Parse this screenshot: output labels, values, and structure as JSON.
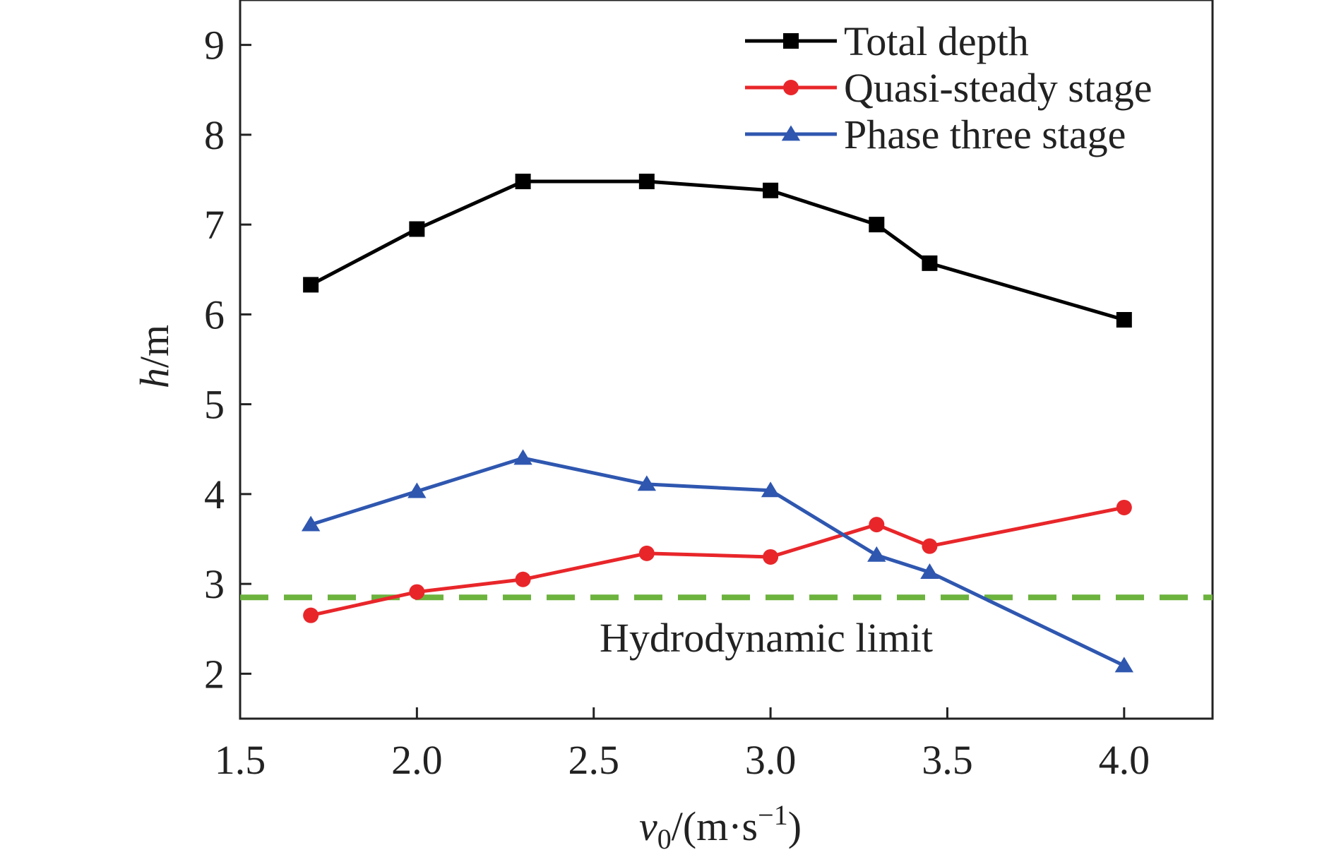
{
  "chart_data": {
    "type": "line",
    "xlabel": {
      "main": "v",
      "sub": "0",
      "unit_prefix": "/(m·s",
      "sup": "−1",
      "unit_suffix": ")"
    },
    "ylabel": {
      "italic": "h",
      "unit": "/m"
    },
    "xlim": [
      1.5,
      4.25
    ],
    "ylim": [
      1.5,
      9.5
    ],
    "x_ticks": [
      1.5,
      2.0,
      2.5,
      3.0,
      3.5,
      4.0
    ],
    "x_tick_labels": [
      "1.5",
      "2.0",
      "2.5",
      "3.0",
      "3.5",
      "4.0"
    ],
    "y_ticks": [
      2,
      3,
      4,
      5,
      6,
      7,
      8,
      9
    ],
    "y_tick_labels": [
      "2",
      "3",
      "4",
      "5",
      "6",
      "7",
      "8",
      "9"
    ],
    "grid": false,
    "legend_position": "top-right",
    "series": [
      {
        "name": "Total depth",
        "color": "#000000",
        "marker": "square",
        "x": [
          1.7,
          2.0,
          2.3,
          2.65,
          3.0,
          3.3,
          3.45,
          4.0
        ],
        "y": [
          6.33,
          6.95,
          7.48,
          7.48,
          7.38,
          7.0,
          6.57,
          5.94
        ]
      },
      {
        "name": "Quasi-steady stage",
        "color": "#e8262a",
        "marker": "circle",
        "x": [
          1.7,
          2.0,
          2.3,
          2.65,
          3.0,
          3.3,
          3.45,
          4.0
        ],
        "y": [
          2.65,
          2.91,
          3.05,
          3.34,
          3.3,
          3.66,
          3.42,
          3.85
        ]
      },
      {
        "name": "Phase three stage",
        "color": "#2f57b0",
        "marker": "triangle",
        "x": [
          1.7,
          2.0,
          2.3,
          2.65,
          3.0,
          3.3,
          3.45,
          4.0
        ],
        "y": [
          3.66,
          4.03,
          4.4,
          4.11,
          4.04,
          3.32,
          3.13,
          2.09
        ]
      }
    ],
    "reference_line": {
      "y": 2.85,
      "color": "#6cb33e",
      "style": "dashed",
      "label": "Hydrodynamic limit"
    }
  }
}
